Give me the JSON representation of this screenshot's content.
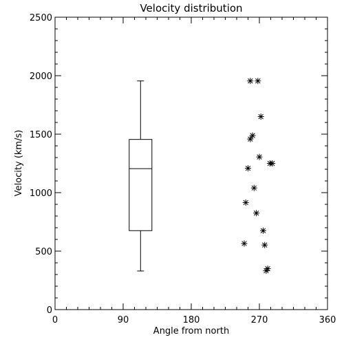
{
  "chart_data": {
    "type": "scatter",
    "title": "Velocity distribution",
    "xlabel": "Angle from north",
    "ylabel": "Velocity (km/s)",
    "xlim": [
      0,
      360
    ],
    "ylim": [
      0,
      2500
    ],
    "x_ticks": [
      "0",
      "90",
      "180",
      "270",
      "360"
    ],
    "y_ticks": [
      "0",
      "500",
      "1000",
      "1500",
      "2000",
      "2500"
    ],
    "grid": false,
    "boxplot": {
      "x": 113,
      "width": 30,
      "min": 330,
      "q1": 675,
      "median": 1205,
      "q3": 1455,
      "max": 1955
    },
    "series": [
      {
        "marker": "asterisk",
        "points": [
          {
            "x": 258,
            "y": 1955
          },
          {
            "x": 268,
            "y": 1955
          },
          {
            "x": 272,
            "y": 1650
          },
          {
            "x": 261,
            "y": 1488
          },
          {
            "x": 258,
            "y": 1458
          },
          {
            "x": 270,
            "y": 1305
          },
          {
            "x": 284,
            "y": 1250
          },
          {
            "x": 287,
            "y": 1250
          },
          {
            "x": 255,
            "y": 1208
          },
          {
            "x": 263,
            "y": 1040
          },
          {
            "x": 252,
            "y": 915
          },
          {
            "x": 266,
            "y": 825
          },
          {
            "x": 275,
            "y": 675
          },
          {
            "x": 250,
            "y": 565
          },
          {
            "x": 277,
            "y": 552
          },
          {
            "x": 281,
            "y": 350
          },
          {
            "x": 279,
            "y": 332
          }
        ]
      }
    ]
  }
}
